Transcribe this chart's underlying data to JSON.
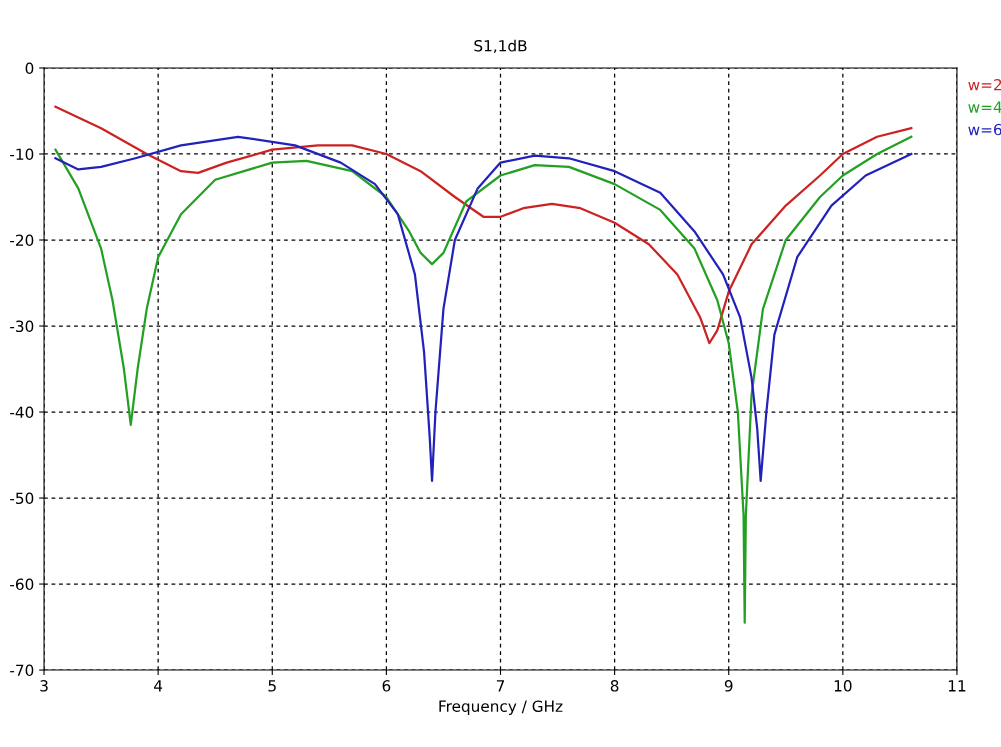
{
  "chart_data": {
    "type": "line",
    "title": "S1,1dB",
    "xlabel": "Frequency / GHz",
    "xlim": [
      3,
      11
    ],
    "xticks": [
      3,
      4,
      5,
      6,
      7,
      8,
      9,
      10,
      11
    ],
    "ylim": [
      -70,
      0
    ],
    "yticks": [
      -70,
      -60,
      -50,
      -40,
      -30,
      -20,
      -10,
      0
    ],
    "grid": true,
    "legend": "top right",
    "line_style": "solid",
    "marker": "none",
    "series": [
      {
        "name": "w=2",
        "color": "#cc2222",
        "x": [
          3.1,
          3.5,
          3.9,
          4.2,
          4.35,
          4.6,
          5.0,
          5.4,
          5.7,
          6.0,
          6.3,
          6.6,
          6.85,
          7.0,
          7.2,
          7.45,
          7.7,
          8.0,
          8.3,
          8.55,
          8.75,
          8.83,
          8.9,
          9.0,
          9.2,
          9.5,
          9.8,
          10.0,
          10.3,
          10.6
        ],
        "values": [
          -4.5,
          -7,
          -10,
          -12,
          -12.2,
          -11,
          -9.5,
          -9,
          -9,
          -10,
          -12,
          -15,
          -17.3,
          -17.3,
          -16.3,
          -15.8,
          -16.3,
          -18,
          -20.5,
          -24,
          -29,
          -32,
          -30.5,
          -26,
          -20.5,
          -16,
          -12.5,
          -10,
          -8,
          -7
        ]
      },
      {
        "name": "w=4",
        "color": "#22a022",
        "x": [
          3.1,
          3.3,
          3.5,
          3.6,
          3.7,
          3.76,
          3.82,
          3.9,
          4.0,
          4.2,
          4.5,
          5.0,
          5.3,
          5.7,
          6.0,
          6.2,
          6.3,
          6.4,
          6.5,
          6.7,
          7.0,
          7.3,
          7.6,
          8.0,
          8.4,
          8.7,
          8.9,
          9.0,
          9.08,
          9.13,
          9.14,
          9.15,
          9.2,
          9.3,
          9.5,
          9.8,
          10.0,
          10.3,
          10.6
        ],
        "values": [
          -9.5,
          -14,
          -21,
          -27,
          -35,
          -41.5,
          -35,
          -28,
          -22,
          -17,
          -13,
          -11,
          -10.8,
          -12,
          -15,
          -19,
          -21.5,
          -22.8,
          -21.5,
          -15.5,
          -12.5,
          -11.3,
          -11.5,
          -13.5,
          -16.5,
          -21,
          -27,
          -32,
          -40,
          -52,
          -64.5,
          -52,
          -38,
          -28,
          -20,
          -15,
          -12.5,
          -10,
          -8
        ]
      },
      {
        "name": "w=6",
        "color": "#2222bb",
        "x": [
          3.1,
          3.3,
          3.5,
          3.8,
          4.2,
          4.7,
          5.2,
          5.6,
          5.9,
          6.1,
          6.25,
          6.33,
          6.38,
          6.4,
          6.43,
          6.5,
          6.6,
          6.8,
          7.0,
          7.3,
          7.6,
          8.0,
          8.4,
          8.7,
          8.95,
          9.1,
          9.2,
          9.25,
          9.28,
          9.33,
          9.4,
          9.6,
          9.9,
          10.2,
          10.6
        ],
        "values": [
          -10.5,
          -11.8,
          -11.5,
          -10.5,
          -9,
          -8,
          -9,
          -11,
          -13.5,
          -17,
          -24,
          -33,
          -43,
          -48,
          -40,
          -28,
          -20,
          -14,
          -11,
          -10.2,
          -10.5,
          -12,
          -14.5,
          -19,
          -24,
          -29,
          -36,
          -42,
          -48,
          -40,
          -31,
          -22,
          -16,
          -12.5,
          -10
        ]
      }
    ]
  }
}
